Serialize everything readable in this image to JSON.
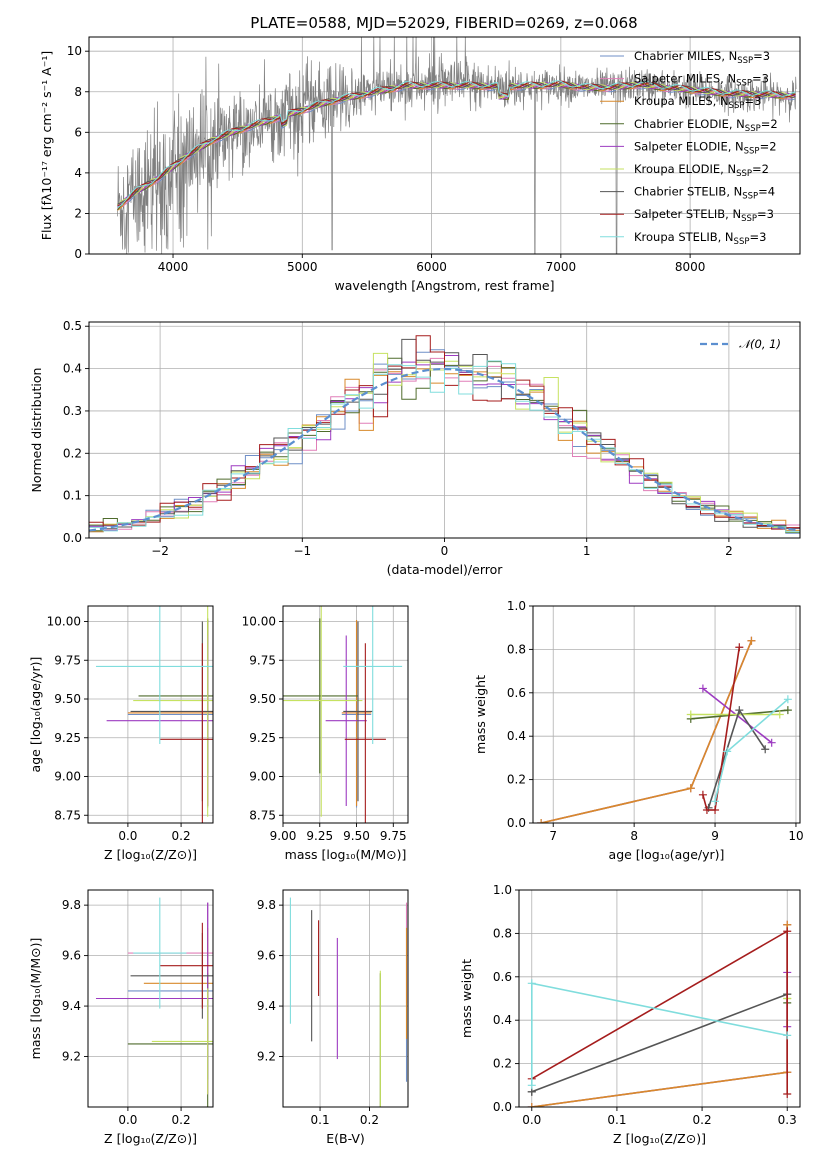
{
  "figure_title": "PLATE=0588, MJD=52029, FIBERID=0269, z=0.068",
  "models": [
    {
      "name": "Chabrier MILES, N",
      "sub": "SSP",
      "tail": "=3",
      "color": "#6f8fc7"
    },
    {
      "name": "Salpeter MILES, N",
      "sub": "SSP",
      "tail": "=3",
      "color": "#e07fb8"
    },
    {
      "name": "Kroupa MILES, N",
      "sub": "SSP",
      "tail": "=3",
      "color": "#d8892b"
    },
    {
      "name": "Chabrier ELODIE, N",
      "sub": "SSP",
      "tail": "=2",
      "color": "#4f6b2c"
    },
    {
      "name": "Salpeter ELODIE, N",
      "sub": "SSP",
      "tail": "=2",
      "color": "#9d3bc1"
    },
    {
      "name": "Kroupa ELODIE, N",
      "sub": "SSP",
      "tail": "=2",
      "color": "#c6e261"
    },
    {
      "name": "Chabrier STELIB, N",
      "sub": "SSP",
      "tail": "=4",
      "color": "#555555"
    },
    {
      "name": "Salpeter STELIB, N",
      "sub": "SSP",
      "tail": "=3",
      "color": "#a51d1d"
    },
    {
      "name": "Kroupa STELIB, N",
      "sub": "SSP",
      "tail": "=3",
      "color": "#80dddd"
    }
  ],
  "chart_data": [
    {
      "id": "spectrum",
      "type": "line",
      "xlabel": "wavelength [Angstrom, rest frame]",
      "ylabel": "Flux [fλ10⁻¹⁷ erg cm⁻² s⁻¹ A⁻¹]",
      "xlim": [
        3350,
        8850
      ],
      "ylim": [
        0,
        10.7
      ],
      "xticks": [
        "4000",
        "5000",
        "6000",
        "7000",
        "8000"
      ],
      "yticks": [
        "0",
        "2",
        "4",
        "6",
        "8",
        "10"
      ],
      "data_color": "#808080",
      "continuum": {
        "x": [
          3570,
          3700,
          3900,
          4100,
          4300,
          4500,
          4800,
          5000,
          5200,
          5500,
          5800,
          6000,
          6300,
          6500,
          6800,
          7000,
          7200,
          7400,
          7600,
          7800,
          8000,
          8300,
          8600,
          8800
        ],
        "y": [
          2.3,
          3.0,
          3.8,
          4.8,
          5.6,
          6.1,
          6.7,
          7.1,
          7.5,
          7.9,
          8.3,
          8.3,
          8.3,
          8.25,
          8.3,
          8.35,
          8.2,
          8.2,
          8.35,
          8.2,
          8.1,
          7.9,
          7.85,
          7.8
        ]
      }
    },
    {
      "id": "residual_hist",
      "type": "step",
      "xlabel": "(data-model)/error",
      "ylabel": "Normed distribution",
      "xlim": [
        -2.5,
        2.5
      ],
      "ylim": [
        0,
        0.51
      ],
      "xticks": [
        "−2",
        "−1",
        "0",
        "1",
        "2"
      ],
      "yticks": [
        "0.0",
        "0.1",
        "0.2",
        "0.3",
        "0.4",
        "0.5"
      ],
      "reference_label": "𝒩(0, 1)",
      "reference_color": "#5b8fd0"
    },
    {
      "id": "age_vs_Z",
      "type": "errorbar",
      "xlabel": "Z [log₁₀(Z/Z⊙)]",
      "ylabel": "age  [log₁₀(age/yr)]",
      "xlim": [
        -0.15,
        0.32
      ],
      "ylim": [
        8.7,
        10.1
      ],
      "xticks": [
        "0.0",
        "0.2"
      ],
      "yticks": [
        "8.75",
        "9.00",
        "9.25",
        "9.50",
        "9.75",
        "10.00"
      ],
      "points": [
        {
          "m": 0,
          "x": 0.3,
          "xerr": 0.3,
          "y": 9.4,
          "yerr": 0.6
        },
        {
          "m": 1,
          "x": 0.3,
          "xerr": 0.3,
          "y": 9.41,
          "yerr": 0.6
        },
        {
          "m": 2,
          "x": 0.3,
          "xerr": 0.3,
          "y": 9.41,
          "yerr": 0.6
        },
        {
          "m": 3,
          "x": 0.3,
          "xerr": 0.26,
          "y": 9.52,
          "yerr": 0.5
        },
        {
          "m": 4,
          "x": 0.3,
          "xerr": 0.38,
          "y": 9.36,
          "yerr": 0.55
        },
        {
          "m": 5,
          "x": 0.3,
          "xerr": 0.28,
          "y": 9.49,
          "yerr": 0.75
        },
        {
          "m": 6,
          "x": 0.28,
          "xerr": 0.27,
          "y": 9.42,
          "yerr": 0.58
        },
        {
          "m": 7,
          "x": 0.28,
          "xerr": 0.16,
          "y": 9.24,
          "yerr": 0.62
        },
        {
          "m": 8,
          "x": 0.12,
          "xerr": 0.24,
          "y": 9.71,
          "yerr": 0.5
        }
      ]
    },
    {
      "id": "age_vs_mass",
      "type": "errorbar",
      "xlabel": "mass [log₁₀(M/M⊙)]",
      "ylabel": "",
      "xlim": [
        9.0,
        9.85
      ],
      "ylim": [
        8.7,
        10.1
      ],
      "xticks": [
        "9.00",
        "9.25",
        "9.50",
        "9.75"
      ],
      "yticks": [
        "8.75",
        "9.00",
        "9.25",
        "9.50",
        "9.75",
        "10.00"
      ],
      "points": [
        {
          "m": 0,
          "x": 9.5,
          "xerr": 0.1,
          "y": 9.4,
          "yerr": 0.6
        },
        {
          "m": 1,
          "x": 9.5,
          "xerr": 0.1,
          "y": 9.41,
          "yerr": 0.6
        },
        {
          "m": 2,
          "x": 9.5,
          "xerr": 0.1,
          "y": 9.41,
          "yerr": 0.6
        },
        {
          "m": 3,
          "x": 9.25,
          "xerr": 0.26,
          "y": 9.52,
          "yerr": 0.5
        },
        {
          "m": 4,
          "x": 9.43,
          "xerr": 0.14,
          "y": 9.36,
          "yerr": 0.55
        },
        {
          "m": 5,
          "x": 9.26,
          "xerr": 0.28,
          "y": 9.49,
          "yerr": 0.75
        },
        {
          "m": 6,
          "x": 9.51,
          "xerr": 0.1,
          "y": 9.42,
          "yerr": 0.58
        },
        {
          "m": 7,
          "x": 9.56,
          "xerr": 0.14,
          "y": 9.24,
          "yerr": 0.62
        },
        {
          "m": 8,
          "x": 9.61,
          "xerr": 0.2,
          "y": 9.71,
          "yerr": 0.5
        }
      ]
    },
    {
      "id": "mass_weight_vs_age",
      "type": "line",
      "xlabel": "age  [log₁₀(age/yr)]",
      "ylabel": "mass weight",
      "xlim": [
        6.75,
        10.05
      ],
      "ylim": [
        0,
        1
      ],
      "xticks": [
        "7",
        "8",
        "9",
        "10"
      ],
      "yticks": [
        "0.0",
        "0.2",
        "0.4",
        "0.6",
        "0.8",
        "1.0"
      ],
      "series": [
        {
          "m": 0,
          "x": [
            6.85,
            8.7,
            9.45
          ],
          "y": [
            0.0,
            0.16,
            0.84
          ]
        },
        {
          "m": 1,
          "x": [
            6.85,
            8.7,
            9.45
          ],
          "y": [
            0.0,
            0.16,
            0.84
          ]
        },
        {
          "m": 2,
          "x": [
            6.85,
            8.7,
            9.45
          ],
          "y": [
            0.0,
            0.16,
            0.84
          ]
        },
        {
          "m": 3,
          "x": [
            8.7,
            9.9
          ],
          "y": [
            0.48,
            0.52
          ]
        },
        {
          "m": 4,
          "x": [
            8.85,
            9.7
          ],
          "y": [
            0.62,
            0.37
          ]
        },
        {
          "m": 5,
          "x": [
            8.7,
            9.8
          ],
          "y": [
            0.5,
            0.5
          ]
        },
        {
          "m": 6,
          "x": [
            8.92,
            9.3,
            9.62
          ],
          "y": [
            0.07,
            0.52,
            0.34
          ]
        },
        {
          "m": 7,
          "x": [
            8.85,
            8.9,
            9.0,
            9.3
          ],
          "y": [
            0.13,
            0.06,
            0.06,
            0.81
          ]
        },
        {
          "m": 8,
          "x": [
            9.0,
            9.15,
            9.9
          ],
          "y": [
            0.1,
            0.33,
            0.57
          ]
        }
      ]
    },
    {
      "id": "mass_vs_Z",
      "type": "errorbar",
      "xlabel": "Z [log₁₀(Z/Z⊙)]",
      "ylabel": "mass [log₁₀(M/M⊙)]",
      "xlim": [
        -0.15,
        0.32
      ],
      "ylim": [
        9.0,
        9.86
      ],
      "xticks": [
        "0.0",
        "0.2"
      ],
      "yticks": [
        "9.2",
        "9.4",
        "9.6",
        "9.8"
      ],
      "points": [
        {
          "m": 0,
          "x": 0.3,
          "xerr": 0.3,
          "y": 9.46,
          "yerr": 0.35
        },
        {
          "m": 1,
          "x": 0.3,
          "xerr": 0.3,
          "y": 9.61,
          "yerr": 0.2
        },
        {
          "m": 2,
          "x": 0.3,
          "xerr": 0.24,
          "y": 9.49,
          "yerr": 0.22
        },
        {
          "m": 3,
          "x": 0.3,
          "xerr": 0.3,
          "y": 9.25,
          "yerr": 0.28
        },
        {
          "m": 4,
          "x": 0.3,
          "xerr": 0.42,
          "y": 9.43,
          "yerr": 0.38
        },
        {
          "m": 5,
          "x": 0.3,
          "xerr": 0.21,
          "y": 9.26,
          "yerr": 0.21
        },
        {
          "m": 6,
          "x": 0.28,
          "xerr": 0.27,
          "y": 9.52,
          "yerr": 0.17
        },
        {
          "m": 7,
          "x": 0.28,
          "xerr": 0.16,
          "y": 9.56,
          "yerr": 0.17
        },
        {
          "m": 8,
          "x": 0.12,
          "xerr": 0.1,
          "y": 9.61,
          "yerr": 0.22
        }
      ]
    },
    {
      "id": "mass_vs_EBV",
      "type": "errorbar",
      "xlabel": "E(B-V)",
      "ylabel": "",
      "xlim": [
        0.025,
        0.278
      ],
      "ylim": [
        9.0,
        9.86
      ],
      "xticks": [
        "0.1",
        "0.2"
      ],
      "yticks": [
        "9.2",
        "9.4",
        "9.6",
        "9.8"
      ],
      "points": [
        {
          "m": 0,
          "x": 0.275,
          "y": 9.45,
          "yerr": 0.35
        },
        {
          "m": 1,
          "x": 0.275,
          "y": 9.61,
          "yerr": 0.2
        },
        {
          "m": 2,
          "x": 0.275,
          "y": 9.49,
          "yerr": 0.22
        },
        {
          "m": 3,
          "x": 0.222,
          "y": 9.25,
          "yerr": 0.28
        },
        {
          "m": 4,
          "x": 0.135,
          "y": 9.43,
          "yerr": 0.24
        },
        {
          "m": 5,
          "x": 0.222,
          "y": 9.26,
          "yerr": 0.28
        },
        {
          "m": 6,
          "x": 0.083,
          "y": 9.52,
          "yerr": 0.26
        },
        {
          "m": 7,
          "x": 0.097,
          "y": 9.59,
          "yerr": 0.15
        },
        {
          "m": 8,
          "x": 0.04,
          "y": 9.58,
          "yerr": 0.25
        }
      ]
    },
    {
      "id": "mass_weight_vs_Z",
      "type": "line",
      "xlabel": "Z [log₁₀(Z/Z⊙)]",
      "ylabel": "mass weight",
      "xlim": [
        -0.015,
        0.315
      ],
      "ylim": [
        0,
        1
      ],
      "xticks": [
        "0.0",
        "0.1",
        "0.2",
        "0.3"
      ],
      "yticks": [
        "0.0",
        "0.2",
        "0.4",
        "0.6",
        "0.8",
        "1.0"
      ],
      "series": [
        {
          "m": 0,
          "x": [
            0,
            0.3,
            0.3
          ],
          "y": [
            0.0,
            0.16,
            0.84
          ]
        },
        {
          "m": 1,
          "x": [
            0,
            0.3,
            0.3
          ],
          "y": [
            0.0,
            0.16,
            0.84
          ]
        },
        {
          "m": 2,
          "x": [
            0,
            0.3,
            0.3
          ],
          "y": [
            0.0,
            0.16,
            0.84
          ]
        },
        {
          "m": 3,
          "x": [
            0.3,
            0.3
          ],
          "y": [
            0.48,
            0.52
          ]
        },
        {
          "m": 4,
          "x": [
            0.3,
            0.3
          ],
          "y": [
            0.37,
            0.62
          ]
        },
        {
          "m": 5,
          "x": [
            0.3,
            0.3
          ],
          "y": [
            0.5,
            0.5
          ]
        },
        {
          "m": 6,
          "x": [
            0,
            0,
            0.3
          ],
          "y": [
            0.07,
            0.07,
            0.52
          ]
        },
        {
          "m": 7,
          "x": [
            0,
            0.3,
            0.3
          ],
          "y": [
            0.13,
            0.81,
            0.06
          ]
        },
        {
          "m": 8,
          "x": [
            0,
            0,
            0.3
          ],
          "y": [
            0.1,
            0.57,
            0.33
          ]
        }
      ]
    }
  ]
}
